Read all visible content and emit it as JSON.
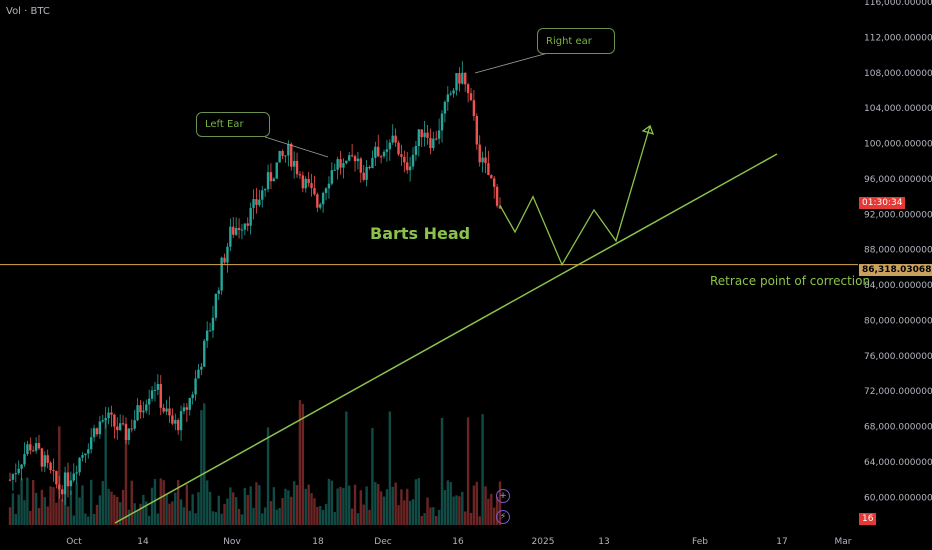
{
  "header": {
    "vol_label": "Vol · BTC"
  },
  "price_axis": {
    "ticks": [
      "116,000.000000",
      "112,000.000000",
      "108,000.000000",
      "104,000.000000",
      "100,000.000000",
      "96,000.000000",
      "92,000.000000",
      "88,000.000000",
      "84,000.000000",
      "80,000.000000",
      "76,000.000000",
      "72,000.000000",
      "68,000.000000",
      "64,000.000000",
      "60,000.000000"
    ],
    "countdown": "01:30:34",
    "current_price": "86,318.030682",
    "bottom_badge": "16"
  },
  "time_axis": {
    "ticks": [
      "Oct",
      "14",
      "Nov",
      "18",
      "Dec",
      "16",
      "2025",
      "13",
      "Feb",
      "17",
      "Mar"
    ]
  },
  "annotations": {
    "left_ear": "Left Ear",
    "right_ear": "Right ear",
    "head": "Barts Head",
    "retrace": "Retrace point of correction"
  },
  "colors": {
    "up": "#26a69a",
    "down": "#ef5350",
    "trendline": "#8bc34a",
    "level_line": "#d8a84e",
    "countdown_bg": "#e53935",
    "price_tag_bg": "#c9a15d",
    "background": "#000000"
  },
  "icons": [
    "plus-circle-icon",
    "lightning-circle-icon"
  ],
  "chart_data": {
    "type": "candlestick",
    "symbol_label": "Vol · BTC",
    "ylim": [
      60000,
      116000
    ],
    "x_ticks": [
      "Oct",
      "14",
      "Nov",
      "18",
      "Dec",
      "16",
      "2025",
      "13",
      "Feb",
      "17",
      "Mar"
    ],
    "series": [
      {
        "name": "price_path",
        "values": [
          [
            62000,
            64000,
            66000,
            65000,
            63000,
            61000,
            62000,
            64000,
            66000,
            68000,
            69000,
            68000,
            67000,
            69000,
            71000,
            73000,
            70000,
            68000,
            69000,
            72000,
            76000,
            80000,
            86000,
            90000,
            91000,
            92000,
            94000,
            96000,
            98000,
            99000,
            97000,
            95000,
            93000,
            96000,
            98000,
            97000,
            99000,
            96000,
            100000,
            98000,
            101000,
            97000,
            99000,
            102000,
            100000,
            103000,
            106000,
            108000,
            104000,
            98000,
            96000,
            93000
          ]
        ]
      }
    ],
    "horizontal_line": 86318.030682,
    "trendline": {
      "from": [
        58000,
        "Oct"
      ],
      "to": [
        99000,
        "17"
      ]
    },
    "projection": [
      93000,
      90000,
      94000,
      86300,
      92500,
      89000,
      102000
    ]
  }
}
